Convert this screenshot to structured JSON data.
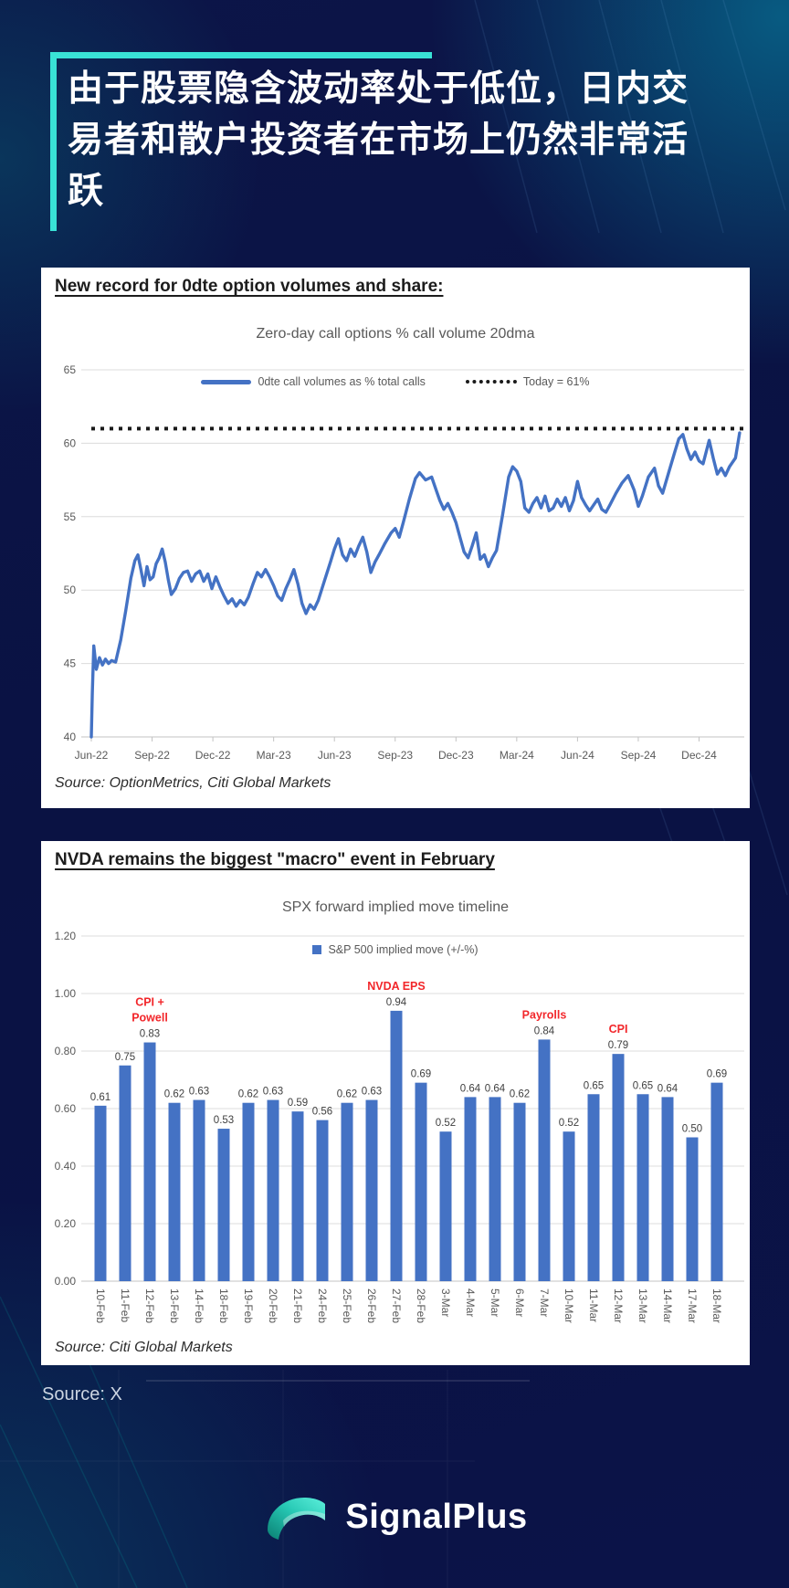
{
  "header": {
    "title_line1": "由于股票隐含波动率处于低位，日内交",
    "title_line2": "易者和散户投资者在市场上仍然非常活",
    "title_line3": "跃",
    "accent_color": "#39e2d6"
  },
  "footer": {
    "source": "Source: X",
    "brand": "SignalPlus"
  },
  "chart_data": [
    {
      "type": "line",
      "panel_heading": "New record for 0dte option volumes and share:",
      "title": "Zero-day call options % call volume 20dma",
      "legend_series": "0dte call volumes as % total calls",
      "legend_today": "Today = 61%",
      "today_level": 61,
      "line_color": "#4472C4",
      "today_line_color": "#1a1a1a",
      "ylim": [
        40,
        65
      ],
      "yticks": [
        40,
        45,
        50,
        55,
        60,
        65
      ],
      "x_tick_labels": [
        "Jun-22",
        "Sep-22",
        "Dec-22",
        "Mar-23",
        "Jun-23",
        "Sep-23",
        "Dec-23",
        "Mar-24",
        "Jun-24",
        "Sep-24",
        "Dec-24"
      ],
      "x_months_per_tick": 3,
      "grid": true,
      "legend_position": "top",
      "points_month_value": [
        [
          0,
          40
        ],
        [
          0.05,
          43.0
        ],
        [
          0.12,
          46.2
        ],
        [
          0.25,
          44.6
        ],
        [
          0.4,
          45.4
        ],
        [
          0.55,
          44.9
        ],
        [
          0.7,
          45.3
        ],
        [
          0.85,
          45.0
        ],
        [
          1.0,
          45.2
        ],
        [
          1.2,
          45.1
        ],
        [
          1.45,
          46.6
        ],
        [
          1.7,
          48.6
        ],
        [
          1.95,
          50.8
        ],
        [
          2.15,
          52.0
        ],
        [
          2.3,
          52.4
        ],
        [
          2.45,
          51.4
        ],
        [
          2.6,
          50.3
        ],
        [
          2.75,
          51.6
        ],
        [
          2.9,
          50.7
        ],
        [
          3.05,
          50.9
        ],
        [
          3.2,
          51.8
        ],
        [
          3.35,
          52.2
        ],
        [
          3.5,
          52.8
        ],
        [
          3.65,
          51.9
        ],
        [
          3.8,
          50.7
        ],
        [
          3.95,
          49.7
        ],
        [
          4.15,
          50.1
        ],
        [
          4.35,
          50.8
        ],
        [
          4.55,
          51.2
        ],
        [
          4.75,
          51.3
        ],
        [
          4.95,
          50.6
        ],
        [
          5.15,
          51.1
        ],
        [
          5.35,
          51.3
        ],
        [
          5.55,
          50.6
        ],
        [
          5.75,
          51.1
        ],
        [
          5.95,
          50.1
        ],
        [
          6.15,
          50.9
        ],
        [
          6.35,
          50.2
        ],
        [
          6.55,
          49.6
        ],
        [
          6.75,
          49.1
        ],
        [
          6.95,
          49.4
        ],
        [
          7.15,
          48.9
        ],
        [
          7.35,
          49.3
        ],
        [
          7.55,
          49.0
        ],
        [
          7.75,
          49.5
        ],
        [
          8.0,
          50.5
        ],
        [
          8.2,
          51.2
        ],
        [
          8.4,
          50.9
        ],
        [
          8.6,
          51.4
        ],
        [
          8.8,
          50.9
        ],
        [
          9.0,
          50.3
        ],
        [
          9.2,
          49.6
        ],
        [
          9.4,
          49.3
        ],
        [
          9.6,
          50.1
        ],
        [
          9.8,
          50.7
        ],
        [
          10.0,
          51.4
        ],
        [
          10.2,
          50.4
        ],
        [
          10.4,
          49.1
        ],
        [
          10.6,
          48.4
        ],
        [
          10.8,
          49.0
        ],
        [
          11.0,
          48.7
        ],
        [
          11.2,
          49.3
        ],
        [
          11.5,
          50.6
        ],
        [
          11.8,
          51.9
        ],
        [
          12.0,
          52.8
        ],
        [
          12.2,
          53.5
        ],
        [
          12.4,
          52.4
        ],
        [
          12.6,
          52.0
        ],
        [
          12.8,
          52.8
        ],
        [
          13.0,
          52.3
        ],
        [
          13.2,
          53.0
        ],
        [
          13.4,
          53.6
        ],
        [
          13.6,
          52.6
        ],
        [
          13.8,
          51.2
        ],
        [
          14.0,
          51.9
        ],
        [
          14.2,
          52.4
        ],
        [
          14.5,
          53.2
        ],
        [
          14.8,
          53.9
        ],
        [
          15.0,
          54.2
        ],
        [
          15.2,
          53.6
        ],
        [
          15.4,
          54.6
        ],
        [
          15.7,
          56.2
        ],
        [
          16.0,
          57.6
        ],
        [
          16.2,
          58.0
        ],
        [
          16.5,
          57.5
        ],
        [
          16.8,
          57.7
        ],
        [
          17.0,
          56.9
        ],
        [
          17.2,
          56.1
        ],
        [
          17.4,
          55.5
        ],
        [
          17.6,
          55.9
        ],
        [
          17.8,
          55.3
        ],
        [
          18.0,
          54.6
        ],
        [
          18.2,
          53.6
        ],
        [
          18.4,
          52.6
        ],
        [
          18.6,
          52.2
        ],
        [
          18.8,
          53.0
        ],
        [
          19.0,
          53.9
        ],
        [
          19.2,
          52.1
        ],
        [
          19.4,
          52.4
        ],
        [
          19.6,
          51.6
        ],
        [
          19.8,
          52.2
        ],
        [
          20.0,
          52.7
        ],
        [
          20.3,
          55.1
        ],
        [
          20.6,
          57.7
        ],
        [
          20.8,
          58.4
        ],
        [
          21.0,
          58.1
        ],
        [
          21.2,
          57.4
        ],
        [
          21.4,
          55.6
        ],
        [
          21.6,
          55.3
        ],
        [
          21.8,
          55.9
        ],
        [
          22.0,
          56.3
        ],
        [
          22.2,
          55.6
        ],
        [
          22.4,
          56.4
        ],
        [
          22.6,
          55.4
        ],
        [
          22.8,
          55.6
        ],
        [
          23.0,
          56.2
        ],
        [
          23.2,
          55.7
        ],
        [
          23.4,
          56.3
        ],
        [
          23.6,
          55.4
        ],
        [
          23.8,
          56.1
        ],
        [
          24.0,
          57.4
        ],
        [
          24.2,
          56.3
        ],
        [
          24.4,
          55.8
        ],
        [
          24.6,
          55.4
        ],
        [
          24.8,
          55.8
        ],
        [
          25.0,
          56.2
        ],
        [
          25.2,
          55.5
        ],
        [
          25.4,
          55.3
        ],
        [
          25.6,
          55.8
        ],
        [
          25.9,
          56.6
        ],
        [
          26.2,
          57.3
        ],
        [
          26.5,
          57.8
        ],
        [
          26.8,
          56.8
        ],
        [
          27.0,
          55.7
        ],
        [
          27.2,
          56.4
        ],
        [
          27.5,
          57.7
        ],
        [
          27.8,
          58.3
        ],
        [
          28.0,
          57.1
        ],
        [
          28.2,
          56.6
        ],
        [
          28.5,
          58.0
        ],
        [
          28.8,
          59.4
        ],
        [
          29.0,
          60.3
        ],
        [
          29.2,
          60.6
        ],
        [
          29.4,
          59.6
        ],
        [
          29.6,
          58.9
        ],
        [
          29.8,
          59.4
        ],
        [
          30.0,
          58.8
        ],
        [
          30.2,
          58.6
        ],
        [
          30.5,
          60.2
        ],
        [
          30.7,
          59.0
        ],
        [
          30.9,
          57.9
        ],
        [
          31.1,
          58.3
        ],
        [
          31.3,
          57.8
        ],
        [
          31.5,
          58.4
        ],
        [
          31.8,
          59.0
        ],
        [
          32.0,
          60.7
        ]
      ],
      "source": "Source: OptionMetrics, Citi Global Markets"
    },
    {
      "type": "bar",
      "panel_heading": "NVDA remains the biggest \"macro\" event in February",
      "title": "SPX forward implied move timeline",
      "legend": "S&P 500 implied move (+/-%)",
      "bar_color": "#4472C4",
      "annotation_color": "#f2262a",
      "ylim": [
        0,
        1.2
      ],
      "ytick_step": 0.2,
      "grid": true,
      "legend_position": "top",
      "categories": [
        "10-Feb",
        "11-Feb",
        "12-Feb",
        "13-Feb",
        "14-Feb",
        "18-Feb",
        "19-Feb",
        "20-Feb",
        "21-Feb",
        "24-Feb",
        "25-Feb",
        "26-Feb",
        "27-Feb",
        "28-Feb",
        "3-Mar",
        "4-Mar",
        "5-Mar",
        "6-Mar",
        "7-Mar",
        "10-Mar",
        "11-Mar",
        "12-Mar",
        "13-Mar",
        "14-Mar",
        "17-Mar",
        "18-Mar"
      ],
      "values": [
        0.61,
        0.75,
        0.83,
        0.62,
        0.63,
        0.53,
        0.62,
        0.63,
        0.59,
        0.56,
        0.62,
        0.63,
        0.94,
        0.69,
        0.52,
        0.64,
        0.64,
        0.62,
        0.84,
        0.52,
        0.65,
        0.79,
        0.65,
        0.64,
        0.5,
        0.69
      ],
      "annotations": [
        {
          "index": 2,
          "lines": [
            "CPI +",
            "Powell"
          ]
        },
        {
          "index": 12,
          "lines": [
            "NVDA EPS"
          ]
        },
        {
          "index": 18,
          "lines": [
            "Payrolls"
          ]
        },
        {
          "index": 21,
          "lines": [
            "CPI"
          ]
        }
      ],
      "source": "Source: Citi Global Markets"
    }
  ]
}
